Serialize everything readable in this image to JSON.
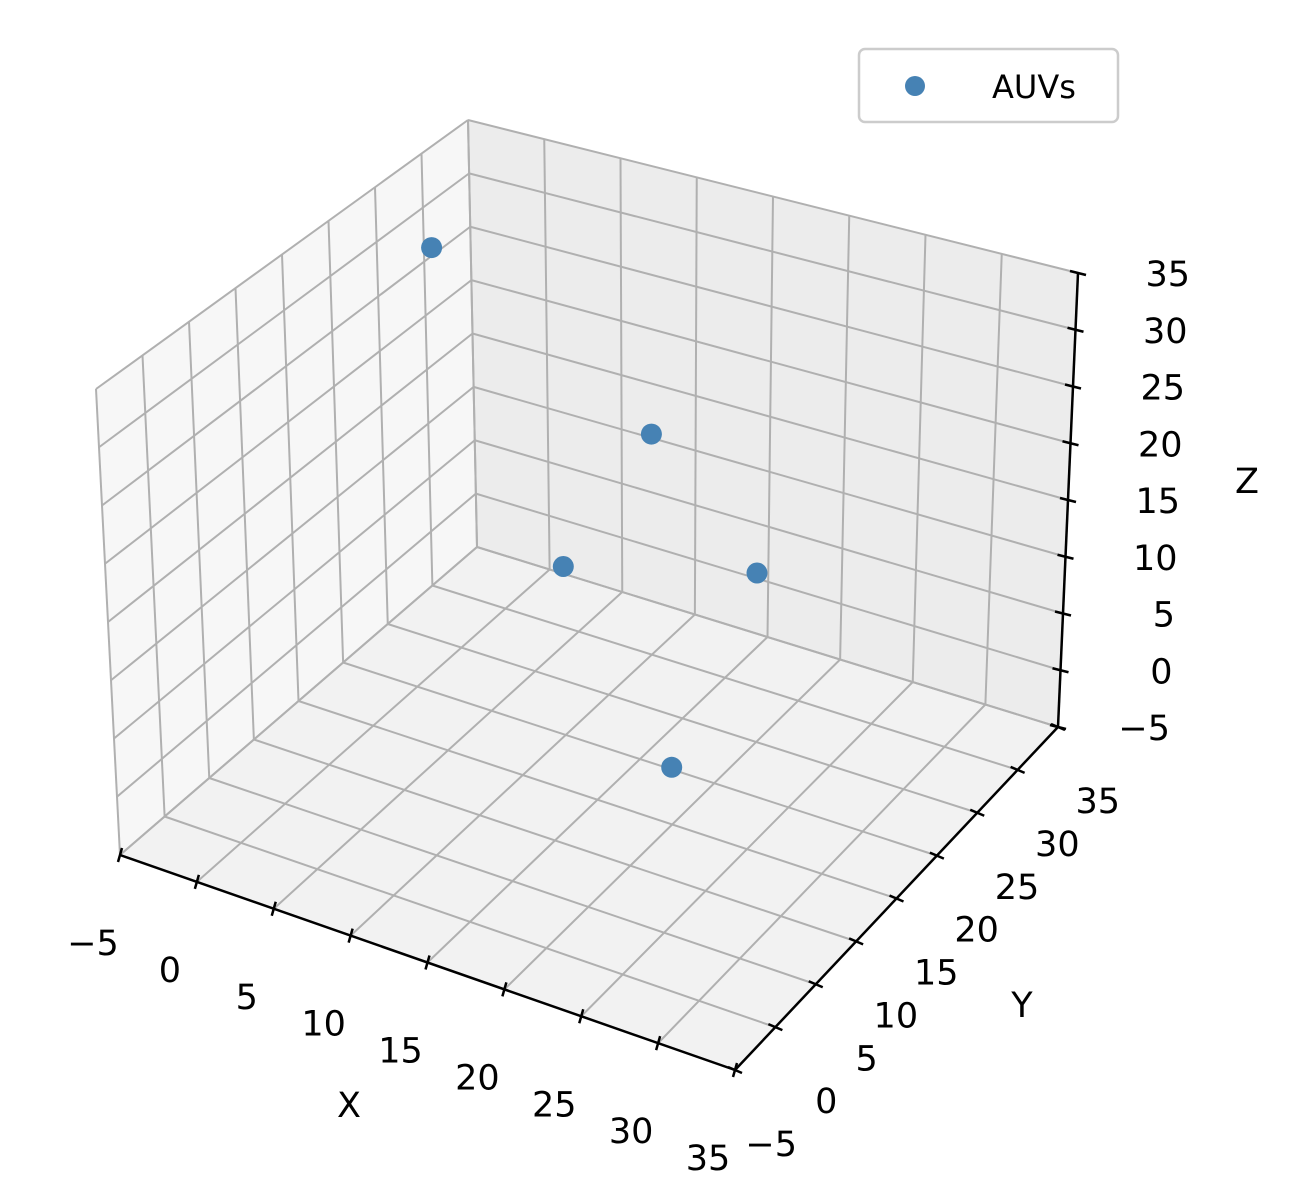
{
  "chart_data": {
    "type": "scatter",
    "projection": "3d",
    "series": [
      {
        "name": "AUVs",
        "color": "#4682b4",
        "points": [
          {
            "x": -2,
            "y": 26,
            "z": 30
          },
          {
            "x": 10,
            "y": 20,
            "z": 10
          },
          {
            "x": 10,
            "y": 30,
            "z": 15
          },
          {
            "x": 20,
            "y": 25,
            "z": 10
          },
          {
            "x": 20,
            "y": 15,
            "z": 0
          }
        ]
      }
    ],
    "xlabel": "X",
    "ylabel": "Y",
    "zlabel": "Z",
    "xlim": [
      -5,
      35
    ],
    "ylim": [
      -5,
      35
    ],
    "zlim": [
      -5,
      35
    ],
    "x_ticks": [
      "−5",
      "0",
      "5",
      "10",
      "15",
      "20",
      "25",
      "30",
      "35"
    ],
    "y_ticks": [
      "−5",
      "0",
      "5",
      "10",
      "15",
      "20",
      "25",
      "30",
      "35"
    ],
    "z_ticks": [
      "−5",
      "0",
      "5",
      "10",
      "15",
      "20",
      "25",
      "30",
      "35"
    ],
    "grid": true,
    "legend_position": "top-right",
    "pane_color_floor": "#f2f2f2",
    "pane_color_left": "#f7f7f7",
    "pane_color_back": "#ececec",
    "grid_color": "#b0b0b0"
  }
}
